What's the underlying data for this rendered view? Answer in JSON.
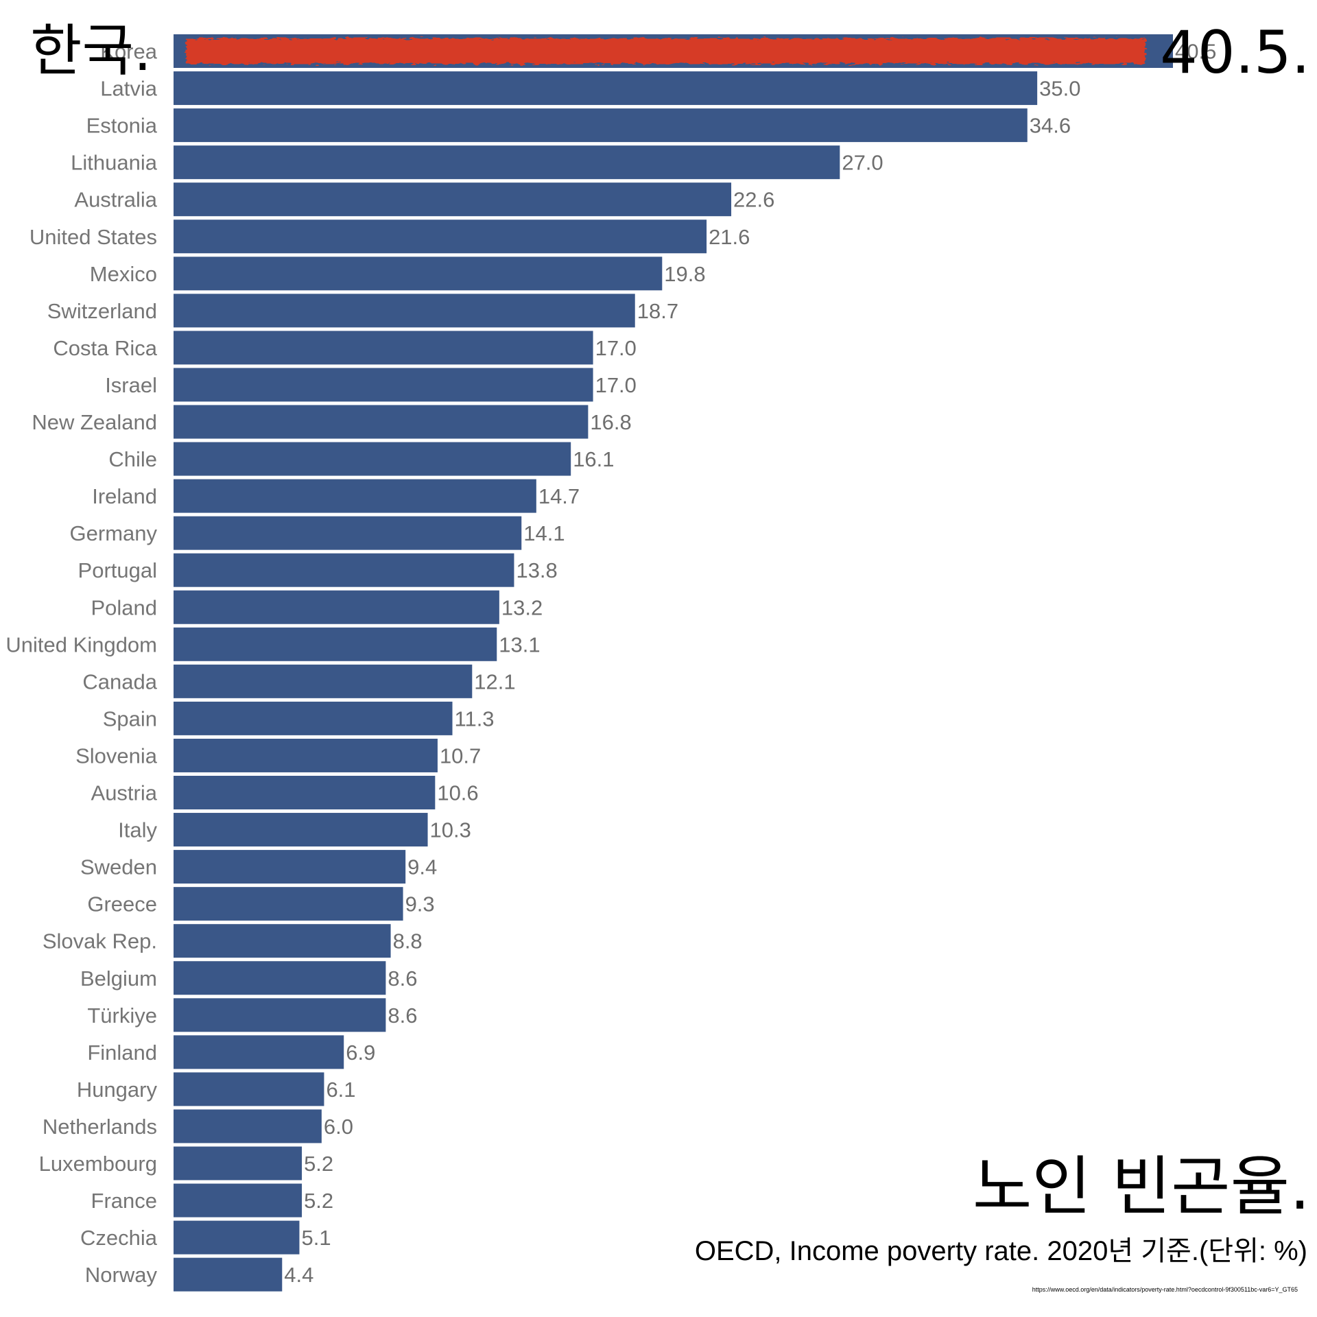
{
  "chart_data": {
    "type": "bar",
    "orientation": "horizontal",
    "categories": [
      "Korea",
      "Latvia",
      "Estonia",
      "Lithuania",
      "Australia",
      "United States",
      "Mexico",
      "Switzerland",
      "Costa Rica",
      "Israel",
      "New Zealand",
      "Chile",
      "Ireland",
      "Germany",
      "Portugal",
      "Poland",
      "United Kingdom",
      "Canada",
      "Spain",
      "Slovenia",
      "Austria",
      "Italy",
      "Sweden",
      "Greece",
      "Slovak Rep.",
      "Belgium",
      "Türkiye",
      "Finland",
      "Hungary",
      "Netherlands",
      "Luxembourg",
      "France",
      "Czechia",
      "Norway"
    ],
    "values": [
      40.5,
      35.0,
      34.6,
      27.0,
      22.6,
      21.6,
      19.8,
      18.7,
      17.0,
      17.0,
      16.8,
      16.1,
      14.7,
      14.1,
      13.8,
      13.2,
      13.1,
      12.1,
      11.3,
      10.7,
      10.6,
      10.3,
      9.4,
      9.3,
      8.8,
      8.6,
      8.6,
      6.9,
      6.1,
      6.0,
      5.2,
      5.2,
      5.1,
      4.4
    ],
    "value_labels": [
      "40.5",
      "35.0",
      "34.6",
      "27.0",
      "22.6",
      "21.6",
      "19.8",
      "18.7",
      "17.0",
      "17.0",
      "16.8",
      "16.1",
      "14.7",
      "14.1",
      "13.8",
      "13.2",
      "13.1",
      "12.1",
      "11.3",
      "10.7",
      "10.6",
      "10.3",
      "9.4",
      "9.3",
      "8.8",
      "8.6",
      "8.6",
      "6.9",
      "6.1",
      "6.0",
      "5.2",
      "5.2",
      "5.1",
      "4.4"
    ],
    "highlight_index": 0,
    "xlim": [
      0,
      40.5
    ],
    "grid": false,
    "legend": "none",
    "bar_color": "#3a5788",
    "highlight_color": "#d63a25",
    "category_label_color": "#757575",
    "value_label_color": "#6e6e6e"
  },
  "annotations": {
    "highlight_country": "한국.",
    "highlight_value": "40.5.",
    "title": "노인 빈곤율.",
    "subtitle": "OECD, Income poverty rate. 2020년 기준.(단위: %)",
    "source": "https://www.oecd.org/en/data/indicators/poverty-rate.html?oecdcontrol-9f300511bc-var6=Y_GT65"
  }
}
